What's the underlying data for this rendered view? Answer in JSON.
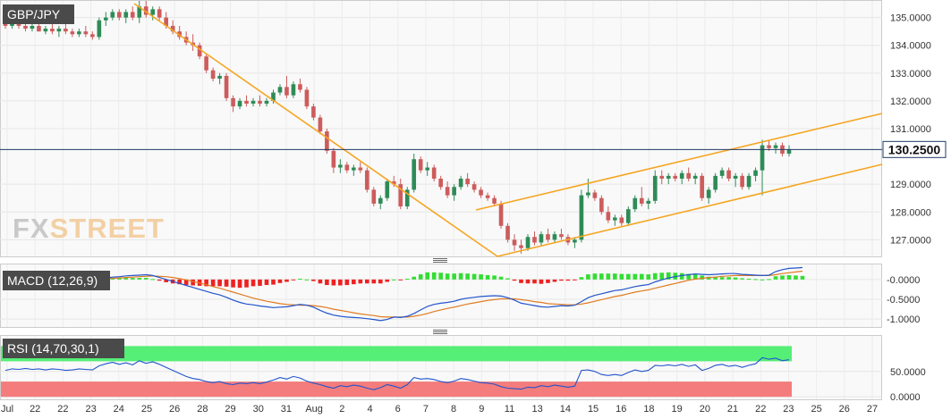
{
  "symbol": "GBP/JPY",
  "brand": {
    "left": "FX",
    "right": "STREET"
  },
  "current_price": {
    "label": "130.2500",
    "value": 130.25
  },
  "panels": {
    "macd_label": "MACD (12,26,9)",
    "rsi_label": "RSI (14,70,30,1)"
  },
  "colors": {
    "bull": "#2e8b57",
    "bear": "#cd5c5c",
    "trendline": "#f5a623",
    "price_line": "#1f3a66",
    "macd_line": "#2255cc",
    "signal_line": "#e07b20",
    "hist_pos": "#33dd33",
    "hist_neg": "#ee2222",
    "rsi_line": "#2255cc",
    "overbought": "#55ee77",
    "oversold": "#f47c7c",
    "tag_bg": "#4a4a4a"
  },
  "chart_data": [
    {
      "type": "candlestick",
      "title": "GBP/JPY",
      "ylim": [
        126.4,
        135.6
      ],
      "y_ticks": [
        "127.0000",
        "128.0000",
        "129.0000",
        "131.0000",
        "132.0000",
        "133.0000",
        "134.0000",
        "135.0000"
      ],
      "x_ticks": [
        "Jul",
        "22",
        "22",
        "23",
        "24",
        "25",
        "26",
        "28",
        "29",
        "30",
        "31",
        "Aug",
        "2",
        "4",
        "6",
        "7",
        "8",
        "9",
        "11",
        "13",
        "14",
        "15",
        "16",
        "18",
        "19",
        "20",
        "21",
        "22",
        "23",
        "25",
        "26",
        "27"
      ],
      "candles": [
        [
          134.8,
          134.9,
          134.6,
          134.7
        ],
        [
          134.7,
          135.0,
          134.6,
          134.9
        ],
        [
          134.9,
          135.0,
          134.6,
          134.7
        ],
        [
          134.7,
          134.8,
          134.5,
          134.6
        ],
        [
          134.6,
          134.8,
          134.5,
          134.7
        ],
        [
          134.7,
          134.9,
          134.5,
          134.5
        ],
        [
          134.5,
          134.7,
          134.4,
          134.6
        ],
        [
          134.6,
          134.8,
          134.4,
          134.5
        ],
        [
          134.5,
          134.7,
          134.3,
          134.6
        ],
        [
          134.6,
          134.8,
          134.4,
          134.5
        ],
        [
          134.5,
          134.6,
          134.3,
          134.4
        ],
        [
          134.4,
          134.6,
          134.3,
          134.5
        ],
        [
          134.5,
          134.7,
          134.3,
          134.4
        ],
        [
          134.4,
          134.5,
          134.2,
          134.3
        ],
        [
          134.3,
          135.0,
          134.2,
          134.9
        ],
        [
          134.9,
          135.2,
          134.7,
          135.0
        ],
        [
          135.0,
          135.3,
          134.9,
          135.2
        ],
        [
          135.2,
          135.3,
          134.9,
          135.0
        ],
        [
          135.0,
          135.3,
          134.8,
          135.2
        ],
        [
          135.2,
          135.4,
          134.9,
          135.0
        ],
        [
          135.0,
          135.6,
          134.8,
          135.4
        ],
        [
          135.4,
          135.6,
          135.0,
          135.1
        ],
        [
          135.1,
          135.4,
          134.9,
          135.3
        ],
        [
          135.3,
          135.4,
          134.9,
          135.0
        ],
        [
          135.0,
          135.2,
          134.6,
          134.7
        ],
        [
          134.7,
          134.9,
          134.4,
          134.5
        ],
        [
          134.5,
          134.7,
          134.2,
          134.3
        ],
        [
          134.3,
          134.5,
          134.0,
          134.1
        ],
        [
          134.1,
          134.4,
          133.8,
          134.0
        ],
        [
          134.0,
          134.1,
          133.5,
          133.6
        ],
        [
          133.6,
          133.7,
          133.0,
          133.1
        ],
        [
          133.1,
          133.2,
          132.7,
          132.8
        ],
        [
          132.8,
          133.0,
          132.6,
          132.9
        ],
        [
          132.9,
          133.0,
          132.0,
          132.1
        ],
        [
          132.1,
          132.2,
          131.6,
          131.8
        ],
        [
          131.8,
          132.1,
          131.7,
          132.0
        ],
        [
          132.0,
          132.2,
          131.8,
          131.9
        ],
        [
          131.9,
          132.1,
          131.8,
          132.0
        ],
        [
          132.0,
          132.2,
          131.8,
          131.9
        ],
        [
          131.9,
          132.1,
          131.8,
          132.0
        ],
        [
          132.0,
          132.4,
          131.9,
          132.3
        ],
        [
          132.3,
          132.6,
          132.2,
          132.5
        ],
        [
          132.5,
          132.9,
          132.1,
          132.2
        ],
        [
          132.2,
          132.7,
          132.1,
          132.6
        ],
        [
          132.6,
          132.8,
          132.3,
          132.4
        ],
        [
          132.4,
          132.5,
          131.7,
          131.8
        ],
        [
          131.8,
          131.9,
          131.3,
          131.4
        ],
        [
          131.4,
          131.5,
          130.8,
          130.9
        ],
        [
          130.9,
          131.0,
          130.1,
          130.2
        ],
        [
          130.2,
          130.3,
          129.4,
          129.6
        ],
        [
          129.6,
          129.9,
          129.4,
          129.7
        ],
        [
          129.7,
          129.8,
          129.4,
          129.5
        ],
        [
          129.5,
          129.7,
          129.3,
          129.6
        ],
        [
          129.6,
          129.8,
          129.4,
          129.5
        ],
        [
          129.5,
          129.6,
          128.7,
          128.8
        ],
        [
          128.8,
          128.9,
          128.2,
          128.3
        ],
        [
          128.3,
          128.6,
          128.1,
          128.5
        ],
        [
          128.5,
          129.2,
          128.4,
          129.1
        ],
        [
          129.1,
          129.3,
          128.9,
          129.0
        ],
        [
          129.0,
          129.2,
          128.1,
          128.2
        ],
        [
          128.2,
          128.9,
          128.1,
          128.8
        ],
        [
          128.8,
          130.1,
          128.7,
          129.9
        ],
        [
          129.9,
          130.0,
          129.4,
          129.5
        ],
        [
          129.5,
          129.8,
          129.3,
          129.6
        ],
        [
          129.6,
          129.7,
          129.1,
          129.2
        ],
        [
          129.2,
          129.3,
          128.8,
          128.9
        ],
        [
          128.9,
          129.1,
          128.5,
          128.6
        ],
        [
          128.6,
          129.0,
          128.4,
          128.9
        ],
        [
          128.9,
          129.3,
          128.8,
          129.2
        ],
        [
          129.2,
          129.4,
          128.9,
          129.0
        ],
        [
          129.0,
          129.1,
          128.7,
          128.8
        ],
        [
          128.8,
          128.9,
          128.5,
          128.6
        ],
        [
          128.6,
          128.7,
          128.4,
          128.5
        ],
        [
          128.5,
          128.6,
          128.2,
          128.3
        ],
        [
          128.3,
          128.4,
          127.4,
          127.5
        ],
        [
          127.5,
          127.6,
          126.9,
          127.0
        ],
        [
          127.0,
          127.2,
          126.6,
          126.8
        ],
        [
          126.8,
          127.0,
          126.5,
          126.7
        ],
        [
          126.7,
          127.2,
          126.6,
          127.1
        ],
        [
          127.1,
          127.3,
          126.8,
          126.9
        ],
        [
          126.9,
          127.3,
          126.8,
          127.2
        ],
        [
          127.2,
          127.4,
          126.9,
          127.0
        ],
        [
          127.0,
          127.3,
          126.9,
          127.2
        ],
        [
          127.2,
          127.4,
          127.0,
          127.1
        ],
        [
          127.1,
          127.2,
          126.8,
          126.9
        ],
        [
          126.9,
          127.1,
          126.7,
          127.0
        ],
        [
          127.0,
          128.8,
          126.9,
          128.6
        ],
        [
          128.6,
          129.2,
          128.5,
          128.7
        ],
        [
          128.7,
          128.8,
          128.4,
          128.5
        ],
        [
          128.5,
          128.6,
          127.9,
          128.0
        ],
        [
          128.0,
          128.2,
          127.6,
          127.7
        ],
        [
          127.7,
          127.9,
          127.5,
          127.8
        ],
        [
          127.8,
          127.9,
          127.5,
          127.6
        ],
        [
          127.6,
          128.2,
          127.5,
          128.1
        ],
        [
          128.1,
          128.6,
          128.0,
          128.5
        ],
        [
          128.5,
          128.9,
          128.2,
          128.3
        ],
        [
          128.3,
          128.5,
          128.1,
          128.4
        ],
        [
          128.4,
          129.5,
          128.3,
          129.3
        ],
        [
          129.3,
          129.5,
          129.0,
          129.2
        ],
        [
          129.2,
          129.4,
          129.0,
          129.3
        ],
        [
          129.3,
          129.4,
          129.1,
          129.2
        ],
        [
          129.2,
          129.5,
          129.0,
          129.4
        ],
        [
          129.4,
          129.6,
          129.1,
          129.2
        ],
        [
          129.2,
          129.4,
          129.0,
          129.3
        ],
        [
          129.3,
          129.4,
          128.4,
          128.5
        ],
        [
          128.5,
          128.9,
          128.3,
          128.8
        ],
        [
          128.8,
          129.4,
          128.7,
          129.3
        ],
        [
          129.3,
          129.6,
          129.2,
          129.5
        ],
        [
          129.5,
          129.6,
          129.1,
          129.2
        ],
        [
          129.2,
          129.4,
          128.9,
          129.3
        ],
        [
          129.3,
          129.4,
          128.8,
          128.9
        ],
        [
          128.9,
          129.4,
          128.8,
          129.3
        ],
        [
          129.3,
          129.6,
          129.1,
          129.5
        ],
        [
          129.5,
          130.6,
          128.6,
          130.4
        ],
        [
          130.4,
          130.6,
          130.2,
          130.3
        ],
        [
          130.3,
          130.5,
          130.1,
          130.4
        ],
        [
          130.4,
          130.5,
          130.0,
          130.1
        ],
        [
          130.1,
          130.4,
          130.0,
          130.25
        ]
      ],
      "current_price": 130.25
    },
    {
      "type": "line",
      "title": "MACD (12,26,9)",
      "ylim": [
        -1.2,
        0.38
      ],
      "y_ticks": [
        "-0.0000",
        "-0.5000",
        "-1.0000"
      ],
      "series": [
        {
          "name": "MACD",
          "values": [
            0.01,
            0.02,
            0.02,
            0.03,
            0.02,
            0.02,
            0.03,
            0.02,
            0.02,
            0.03,
            0.02,
            0.03,
            0.02,
            0.03,
            0.03,
            0.04,
            0.06,
            0.07,
            0.09,
            0.1,
            0.11,
            0.12,
            0.1,
            0.05,
            0.0,
            -0.05,
            -0.1,
            -0.15,
            -0.2,
            -0.25,
            -0.3,
            -0.35,
            -0.39,
            -0.45,
            -0.52,
            -0.58,
            -0.62,
            -0.64,
            -0.67,
            -0.69,
            -0.71,
            -0.7,
            -0.69,
            -0.66,
            -0.63,
            -0.65,
            -0.7,
            -0.78,
            -0.85,
            -0.9,
            -0.93,
            -0.95,
            -0.96,
            -0.97,
            -0.99,
            -1.01,
            -1.04,
            -1.01,
            -0.95,
            -0.96,
            -0.93,
            -0.86,
            -0.77,
            -0.68,
            -0.63,
            -0.6,
            -0.58,
            -0.55,
            -0.5,
            -0.47,
            -0.45,
            -0.43,
            -0.42,
            -0.41,
            -0.42,
            -0.46,
            -0.52,
            -0.6,
            -0.63,
            -0.66,
            -0.69,
            -0.7,
            -0.68,
            -0.66,
            -0.67,
            -0.65,
            -0.56,
            -0.46,
            -0.4,
            -0.36,
            -0.32,
            -0.28,
            -0.26,
            -0.22,
            -0.18,
            -0.15,
            -0.13,
            -0.06,
            -0.01,
            0.04,
            0.07,
            0.1,
            0.12,
            0.14,
            0.13,
            0.12,
            0.13,
            0.14,
            0.15,
            0.15,
            0.13,
            0.12,
            0.11,
            0.1,
            0.11,
            0.2,
            0.25,
            0.28,
            0.29,
            0.3
          ]
        },
        {
          "name": "Signal",
          "values": [
            0.01,
            0.01,
            0.02,
            0.02,
            0.02,
            0.02,
            0.02,
            0.02,
            0.02,
            0.02,
            0.02,
            0.02,
            0.02,
            0.02,
            0.02,
            0.03,
            0.03,
            0.04,
            0.05,
            0.06,
            0.07,
            0.08,
            0.09,
            0.08,
            0.07,
            0.05,
            0.02,
            -0.01,
            -0.05,
            -0.09,
            -0.13,
            -0.18,
            -0.22,
            -0.27,
            -0.32,
            -0.37,
            -0.42,
            -0.47,
            -0.51,
            -0.55,
            -0.58,
            -0.61,
            -0.63,
            -0.64,
            -0.65,
            -0.65,
            -0.66,
            -0.68,
            -0.71,
            -0.75,
            -0.78,
            -0.81,
            -0.84,
            -0.87,
            -0.89,
            -0.91,
            -0.94,
            -0.95,
            -0.95,
            -0.95,
            -0.95,
            -0.93,
            -0.9,
            -0.86,
            -0.81,
            -0.77,
            -0.73,
            -0.7,
            -0.66,
            -0.62,
            -0.59,
            -0.56,
            -0.53,
            -0.51,
            -0.49,
            -0.49,
            -0.49,
            -0.51,
            -0.53,
            -0.56,
            -0.58,
            -0.61,
            -0.62,
            -0.63,
            -0.64,
            -0.64,
            -0.62,
            -0.59,
            -0.55,
            -0.51,
            -0.47,
            -0.43,
            -0.4,
            -0.36,
            -0.32,
            -0.29,
            -0.26,
            -0.22,
            -0.18,
            -0.14,
            -0.1,
            -0.06,
            -0.02,
            0.01,
            0.03,
            0.05,
            0.06,
            0.08,
            0.09,
            0.1,
            0.1,
            0.1,
            0.1,
            0.1,
            0.1,
            0.12,
            0.15,
            0.17,
            0.19,
            0.21
          ]
        }
      ]
    },
    {
      "type": "line",
      "title": "RSI (14,70,30,1)",
      "ylim": [
        -5,
        120
      ],
      "y_ticks": [
        "50.0000",
        "0.0000"
      ],
      "series": [
        {
          "name": "RSI",
          "values": [
            52,
            55,
            54,
            56,
            54,
            55,
            53,
            55,
            54,
            52,
            53,
            55,
            54,
            53,
            61,
            65,
            68,
            64,
            67,
            63,
            71,
            66,
            69,
            64,
            58,
            52,
            46,
            40,
            36,
            34,
            30,
            28,
            30,
            26,
            24,
            27,
            26,
            28,
            26,
            29,
            33,
            38,
            35,
            40,
            37,
            31,
            27,
            24,
            20,
            17,
            22,
            20,
            23,
            21,
            17,
            14,
            18,
            24,
            21,
            17,
            24,
            38,
            35,
            36,
            34,
            30,
            28,
            31,
            36,
            34,
            31,
            28,
            27,
            25,
            20,
            17,
            16,
            15,
            19,
            18,
            22,
            20,
            23,
            21,
            19,
            21,
            52,
            53,
            50,
            44,
            42,
            44,
            42,
            48,
            53,
            50,
            52,
            62,
            61,
            63,
            61,
            64,
            60,
            63,
            52,
            56,
            62,
            64,
            60,
            62,
            58,
            62,
            65,
            77,
            74,
            76,
            71,
            73
          ]
        }
      ]
    }
  ]
}
